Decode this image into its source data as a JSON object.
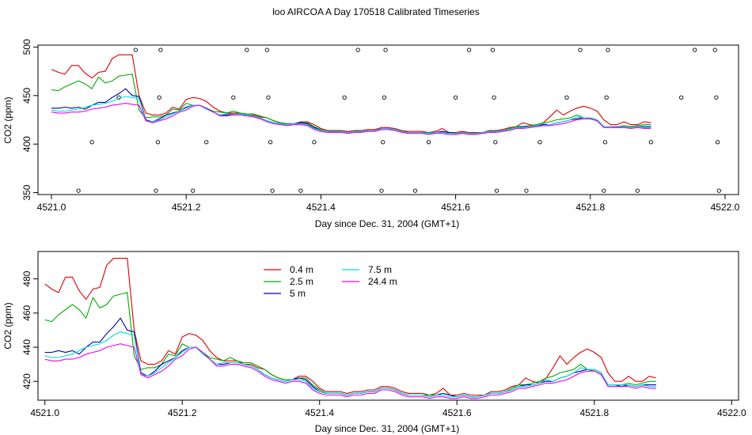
{
  "title": "loo AIRCOA A  Day 170518  Calibrated Timeseries",
  "chart_data": [
    {
      "type": "scatter",
      "xlabel": "Day since Dec. 31, 2004 (GMT+1)",
      "ylabel": "CO2 (ppm)",
      "xlim": [
        4520.98,
        4522.02
      ],
      "ylim": [
        348,
        502
      ],
      "xticks": [
        4521.0,
        4521.2,
        4521.4,
        4521.6,
        4521.8,
        4522.0
      ],
      "xtick_labels": [
        "4521.0",
        "4521.2",
        "4521.4",
        "4521.6",
        "4521.8",
        "4522.0"
      ],
      "yticks": [
        350,
        400,
        450,
        500
      ],
      "ytick_labels": [
        "350",
        "400",
        "450",
        "500"
      ],
      "grid": false,
      "colors": {
        "0.4 m": "#dd0000",
        "2.5 m": "#00aa00",
        "5 m": "#0000aa",
        "7.5 m": "#00dddd",
        "24.4 m": "#ee00ee"
      },
      "points": [
        {
          "x": 4521.04,
          "y": 352
        },
        {
          "x": 4521.06,
          "y": 402
        },
        {
          "x": 4521.1,
          "y": 448
        },
        {
          "x": 4521.125,
          "y": 497
        },
        {
          "x": 4521.155,
          "y": 352
        },
        {
          "x": 4521.158,
          "y": 402
        },
        {
          "x": 4521.16,
          "y": 448
        },
        {
          "x": 4521.162,
          "y": 497
        },
        {
          "x": 4521.21,
          "y": 352
        },
        {
          "x": 4521.23,
          "y": 402
        },
        {
          "x": 4521.27,
          "y": 448
        },
        {
          "x": 4521.29,
          "y": 497
        },
        {
          "x": 4521.32,
          "y": 497
        },
        {
          "x": 4521.322,
          "y": 448
        },
        {
          "x": 4521.325,
          "y": 402
        },
        {
          "x": 4521.328,
          "y": 352
        },
        {
          "x": 4521.37,
          "y": 352
        },
        {
          "x": 4521.39,
          "y": 402
        },
        {
          "x": 4521.435,
          "y": 448
        },
        {
          "x": 4521.455,
          "y": 497
        },
        {
          "x": 4521.49,
          "y": 352
        },
        {
          "x": 4521.492,
          "y": 402
        },
        {
          "x": 4521.494,
          "y": 448
        },
        {
          "x": 4521.496,
          "y": 497
        },
        {
          "x": 4521.54,
          "y": 352
        },
        {
          "x": 4521.56,
          "y": 402
        },
        {
          "x": 4521.6,
          "y": 448
        },
        {
          "x": 4521.62,
          "y": 497
        },
        {
          "x": 4521.655,
          "y": 497
        },
        {
          "x": 4521.657,
          "y": 448
        },
        {
          "x": 4521.659,
          "y": 402
        },
        {
          "x": 4521.661,
          "y": 352
        },
        {
          "x": 4521.705,
          "y": 352
        },
        {
          "x": 4521.725,
          "y": 402
        },
        {
          "x": 4521.765,
          "y": 448
        },
        {
          "x": 4521.785,
          "y": 497
        },
        {
          "x": 4521.82,
          "y": 352
        },
        {
          "x": 4521.822,
          "y": 402
        },
        {
          "x": 4521.824,
          "y": 448
        },
        {
          "x": 4521.826,
          "y": 497
        },
        {
          "x": 4521.87,
          "y": 352
        },
        {
          "x": 4521.89,
          "y": 402
        },
        {
          "x": 4521.935,
          "y": 448
        },
        {
          "x": 4521.955,
          "y": 497
        },
        {
          "x": 4521.985,
          "y": 497
        },
        {
          "x": 4521.987,
          "y": 448
        },
        {
          "x": 4521.989,
          "y": 402
        },
        {
          "x": 4521.991,
          "y": 352
        }
      ],
      "x": [
        4521.0,
        4521.01,
        4521.02,
        4521.03,
        4521.04,
        4521.05,
        4521.06,
        4521.07,
        4521.08,
        4521.09,
        4521.1,
        4521.11,
        4521.12,
        4521.13,
        4521.14,
        4521.15,
        4521.16,
        4521.17,
        4521.18,
        4521.19,
        4521.2,
        4521.21,
        4521.22,
        4521.23,
        4521.24,
        4521.25,
        4521.26,
        4521.27,
        4521.28,
        4521.29,
        4521.3,
        4521.31,
        4521.32,
        4521.33,
        4521.34,
        4521.35,
        4521.36,
        4521.37,
        4521.38,
        4521.39,
        4521.4,
        4521.41,
        4521.42,
        4521.43,
        4521.44,
        4521.45,
        4521.46,
        4521.47,
        4521.48,
        4521.49,
        4521.5,
        4521.51,
        4521.52,
        4521.53,
        4521.54,
        4521.55,
        4521.56,
        4521.57,
        4521.58,
        4521.59,
        4521.6,
        4521.61,
        4521.62,
        4521.63,
        4521.64,
        4521.65,
        4521.66,
        4521.67,
        4521.68,
        4521.69,
        4521.7,
        4521.71,
        4521.72,
        4521.73,
        4521.74,
        4521.75,
        4521.76,
        4521.77,
        4521.78,
        4521.79,
        4521.8,
        4521.81,
        4521.82,
        4521.83,
        4521.84,
        4521.85,
        4521.86,
        4521.87,
        4521.88,
        4521.89,
        4521.9,
        4521.91,
        4521.92,
        4521.93,
        4521.94,
        4521.95,
        4521.96,
        4521.97,
        4521.98,
        4521.99
      ],
      "series": [
        {
          "name": "0.4 m",
          "values": [
            477,
            474,
            472,
            481,
            481,
            473,
            468,
            474,
            475,
            488,
            492,
            492,
            492,
            450,
            432,
            430,
            430,
            432,
            438,
            436,
            446,
            448,
            447,
            444,
            438,
            434,
            432,
            432,
            432,
            430,
            430,
            428,
            427,
            424,
            422,
            421,
            421,
            423,
            423,
            420,
            416,
            414,
            414,
            414,
            413,
            414,
            414,
            415,
            415,
            417,
            417,
            416,
            414,
            413,
            413,
            413,
            412,
            413,
            416,
            412,
            412,
            413,
            412,
            412,
            412,
            414,
            414,
            415,
            417,
            418,
            422,
            420,
            419,
            422,
            428,
            435,
            430,
            434,
            437,
            439,
            437,
            434,
            425,
            420,
            420,
            423,
            420,
            420,
            423,
            422
          ]
        },
        {
          "name": "2.5 m",
          "values": [
            456,
            455,
            459,
            462,
            465,
            462,
            457,
            469,
            463,
            465,
            470,
            471,
            472,
            435,
            427,
            428,
            428,
            430,
            436,
            435,
            442,
            440,
            440,
            437,
            434,
            433,
            432,
            434,
            432,
            431,
            431,
            429,
            427,
            424,
            422,
            421,
            421,
            422,
            422,
            418,
            415,
            413,
            413,
            413,
            412,
            413,
            413,
            414,
            414,
            416,
            416,
            415,
            413,
            412,
            412,
            412,
            412,
            412,
            413,
            412,
            411,
            412,
            411,
            411,
            412,
            413,
            413,
            414,
            416,
            418,
            418,
            419,
            420,
            422,
            423,
            425,
            426,
            427,
            430,
            427,
            426,
            424,
            418,
            418,
            418,
            419,
            418,
            419,
            420,
            420
          ]
        },
        {
          "name": "5 m",
          "values": [
            437,
            437,
            438,
            437,
            438,
            436,
            440,
            443,
            443,
            448,
            452,
            457,
            450,
            449,
            425,
            423,
            426,
            430,
            432,
            434,
            438,
            440,
            440,
            436,
            433,
            430,
            430,
            431,
            431,
            430,
            429,
            427,
            424,
            422,
            421,
            420,
            421,
            422,
            421,
            417,
            414,
            413,
            413,
            413,
            412,
            413,
            413,
            414,
            414,
            416,
            416,
            415,
            413,
            412,
            412,
            412,
            411,
            412,
            413,
            412,
            411,
            412,
            411,
            411,
            412,
            413,
            413,
            414,
            415,
            417,
            418,
            418,
            419,
            420,
            420,
            422,
            423,
            425,
            426,
            427,
            427,
            425,
            418,
            418,
            417,
            418,
            417,
            418,
            418,
            418
          ]
        },
        {
          "name": "7.5 m",
          "values": [
            435,
            434,
            434,
            435,
            436,
            438,
            440,
            441,
            442,
            444,
            447,
            449,
            448,
            447,
            424,
            423,
            425,
            428,
            431,
            434,
            437,
            440,
            440,
            436,
            433,
            430,
            431,
            431,
            431,
            430,
            429,
            427,
            424,
            422,
            421,
            420,
            421,
            421,
            420,
            416,
            414,
            413,
            413,
            413,
            412,
            413,
            413,
            414,
            414,
            416,
            416,
            415,
            413,
            412,
            412,
            412,
            411,
            412,
            412,
            411,
            411,
            412,
            411,
            411,
            412,
            413,
            413,
            414,
            415,
            417,
            417,
            418,
            419,
            421,
            420,
            422,
            423,
            425,
            428,
            427,
            427,
            425,
            418,
            418,
            418,
            418,
            417,
            418,
            417,
            417
          ]
        },
        {
          "name": "24.4 m",
          "values": [
            433,
            432,
            432,
            433,
            433,
            434,
            436,
            437,
            438,
            440,
            441,
            442,
            441,
            440,
            424,
            422,
            424,
            426,
            429,
            433,
            435,
            439,
            440,
            437,
            433,
            429,
            429,
            430,
            430,
            429,
            428,
            426,
            423,
            421,
            420,
            419,
            420,
            420,
            419,
            415,
            413,
            412,
            412,
            412,
            411,
            412,
            412,
            413,
            413,
            415,
            415,
            414,
            412,
            411,
            411,
            411,
            410,
            411,
            411,
            410,
            410,
            411,
            410,
            410,
            411,
            412,
            412,
            413,
            414,
            416,
            416,
            417,
            418,
            419,
            419,
            420,
            421,
            423,
            425,
            426,
            426,
            424,
            417,
            417,
            417,
            417,
            416,
            417,
            416,
            416
          ]
        }
      ]
    },
    {
      "type": "line",
      "xlabel": "Day since Dec. 31, 2004 (GMT+1)",
      "ylabel": "CO2 (ppm)",
      "xlim": [
        4520.99,
        4522.01
      ],
      "ylim": [
        409,
        496
      ],
      "xticks": [
        4521.0,
        4521.2,
        4521.4,
        4521.6,
        4521.8,
        4522.0
      ],
      "xtick_labels": [
        "4521.0",
        "4521.2",
        "4521.4",
        "4521.6",
        "4521.8",
        "4522.0"
      ],
      "yticks": [
        420,
        440,
        460,
        480
      ],
      "ytick_labels": [
        "420",
        "440",
        "460",
        "480"
      ],
      "grid": false,
      "legend": {
        "placement": "top-left",
        "entries": [
          "0.4 m",
          "2.5 m",
          "5 m",
          "7.5 m",
          "24.4 m"
        ]
      },
      "uses_series_of_chart": 0
    }
  ]
}
